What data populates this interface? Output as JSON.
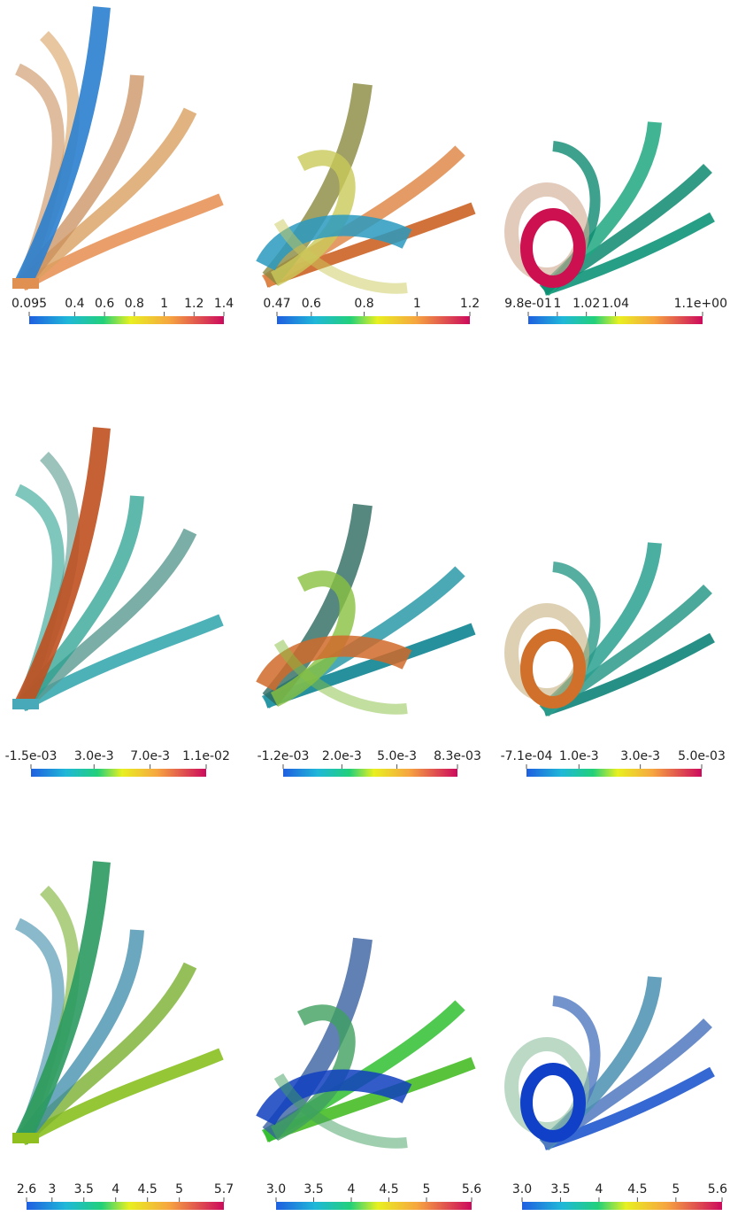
{
  "panels": [
    {
      "colorbar": {
        "ticks": [
          "0.095",
          "0.4",
          "0.6",
          "0.8",
          "1",
          "1.2",
          "1.4"
        ]
      }
    },
    {
      "colorbar": {
        "ticks": [
          "0.47",
          "0.6",
          "0.8",
          "1",
          "1.2"
        ]
      }
    },
    {
      "colorbar": {
        "ticks": [
          "9.8e-01",
          "1",
          "1.02",
          "1.04",
          "1.1e+00"
        ]
      }
    },
    {
      "colorbar": {
        "ticks": [
          "-1.5e-03",
          "3.0e-3",
          "7.0e-3",
          "1.1e-02"
        ]
      }
    },
    {
      "colorbar": {
        "ticks": [
          "-1.2e-03",
          "2.0e-3",
          "5.0e-3",
          "8.3e-03"
        ]
      }
    },
    {
      "colorbar": {
        "ticks": [
          "-7.1e-04",
          "1.0e-3",
          "3.0e-3",
          "5.0e-03"
        ]
      }
    },
    {
      "colorbar": {
        "ticks": [
          "2.6",
          "3",
          "3.5",
          "4",
          "4.5",
          "5",
          "5.7"
        ]
      }
    },
    {
      "colorbar": {
        "ticks": [
          "3.0",
          "3.5",
          "4",
          "4.5",
          "5",
          "5.6"
        ]
      }
    },
    {
      "colorbar": {
        "ticks": [
          "3.0",
          "3.5",
          "4",
          "4.5",
          "5",
          "5.6"
        ]
      }
    }
  ]
}
